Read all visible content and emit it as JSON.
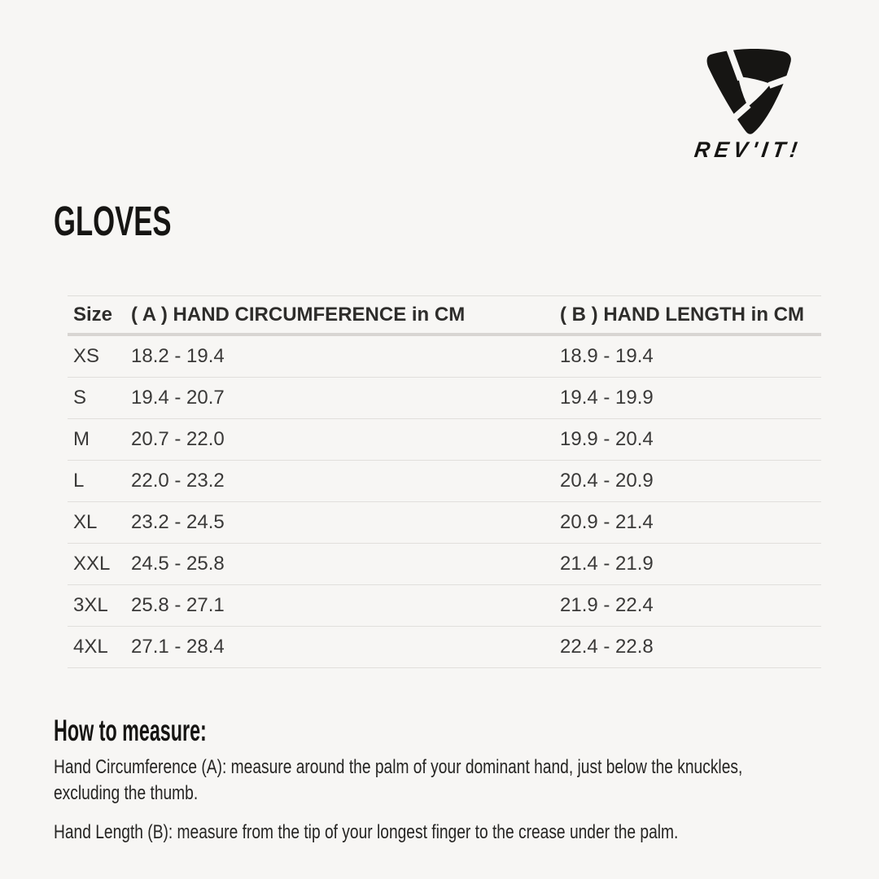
{
  "brand": {
    "name": "REV'IT!"
  },
  "title": "GLOVES",
  "colors": {
    "background": "#f7f6f4",
    "ink": "#161513",
    "row_text": "#3a3938",
    "divider": "#e1dfdc",
    "header_divider": "#d8d5d2"
  },
  "table": {
    "headers": [
      "Size",
      "( A ) HAND CIRCUMFERENCE in CM",
      "( B ) HAND LENGTH in CM"
    ],
    "rows": [
      {
        "size": "XS",
        "circumference": "18.2 - 19.4",
        "length": "18.9 - 19.4"
      },
      {
        "size": "S",
        "circumference": "19.4 - 20.7",
        "length": "19.4 - 19.9"
      },
      {
        "size": "M",
        "circumference": "20.7 - 22.0",
        "length": "19.9 - 20.4"
      },
      {
        "size": "L",
        "circumference": "22.0 - 23.2",
        "length": "20.4 - 20.9"
      },
      {
        "size": "XL",
        "circumference": "23.2 - 24.5",
        "length": "20.9 - 21.4"
      },
      {
        "size": "XXL",
        "circumference": "24.5 - 25.8",
        "length": "21.4 - 21.9"
      },
      {
        "size": "3XL",
        "circumference": "25.8 - 27.1",
        "length": "21.9 - 22.4"
      },
      {
        "size": "4XL",
        "circumference": "27.1 - 28.4",
        "length": "22.4 - 22.8"
      }
    ]
  },
  "instructions": {
    "heading": "How to measure:",
    "circumference_line1": "Hand Circumference (A): measure around the palm of your dominant hand, just below the knuckles,",
    "circumference_line2": "excluding the thumb.",
    "length": "Hand Length (B): measure from the tip of your longest finger to the crease under the palm."
  }
}
